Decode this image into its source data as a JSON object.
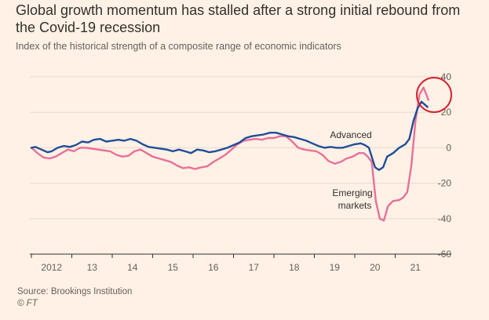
{
  "header": {
    "title": "Global growth momentum has stalled after a strong initial rebound from the Covid-19 recession",
    "subtitle": "Index of the historical strength of a composite range of economic indicators"
  },
  "footer": {
    "source": "Source: Brookings Institution",
    "credit": "© FT"
  },
  "colors": {
    "background": "#fff1e5",
    "advanced": "#1f4e99",
    "emerging": "#e8709a",
    "highlight_circle": "#d81e2b",
    "gridline": "#e6d9ce",
    "axis": "#33302e"
  },
  "chart_data": {
    "type": "line",
    "title": "Global growth momentum has stalled after a strong initial rebound from the Covid-19 recession",
    "subtitle": "Index of the historical strength of a composite range of economic indicators",
    "ylim": [
      -60,
      40
    ],
    "xlim": [
      2011.5,
      2021.5
    ],
    "y_ticks": [
      40,
      20,
      0,
      -20,
      -40,
      -60
    ],
    "y_tick_labels": [
      "40",
      "20",
      "0",
      "-20",
      "-40",
      "-60"
    ],
    "x_tick_labels": [
      {
        "x": 2012,
        "label": "2012"
      },
      {
        "x": 2013,
        "label": "13"
      },
      {
        "x": 2014,
        "label": "14"
      },
      {
        "x": 2015,
        "label": "15"
      },
      {
        "x": 2016,
        "label": "16"
      },
      {
        "x": 2017,
        "label": "17"
      },
      {
        "x": 2018,
        "label": "18"
      },
      {
        "x": 2019,
        "label": "19"
      },
      {
        "x": 2020,
        "label": "20"
      },
      {
        "x": 2021,
        "label": "21"
      }
    ],
    "grid": true,
    "legend": "direct labels",
    "annotation": "red circle around 2021 peak",
    "series": [
      {
        "name": "Advanced",
        "color": "#1f4e99",
        "x": [
          2011.5,
          2011.6,
          2011.75,
          2011.9,
          2012.0,
          2012.15,
          2012.3,
          2012.45,
          2012.6,
          2012.75,
          2012.9,
          2013.05,
          2013.2,
          2013.35,
          2013.5,
          2013.65,
          2013.8,
          2013.95,
          2014.1,
          2014.25,
          2014.4,
          2014.55,
          2014.7,
          2014.85,
          2015.0,
          2015.15,
          2015.3,
          2015.45,
          2015.6,
          2015.75,
          2015.9,
          2016.05,
          2016.2,
          2016.35,
          2016.5,
          2016.65,
          2016.8,
          2016.95,
          2017.1,
          2017.25,
          2017.4,
          2017.55,
          2017.7,
          2017.85,
          2018.0,
          2018.15,
          2018.3,
          2018.45,
          2018.6,
          2018.75,
          2018.9,
          2019.05,
          2019.2,
          2019.35,
          2019.5,
          2019.65,
          2019.75,
          2019.85,
          2020.0,
          2020.1,
          2020.2,
          2020.3,
          2020.45,
          2020.6,
          2020.75,
          2020.85,
          2020.95,
          2021.05,
          2021.15,
          2021.25,
          2021.3
        ],
        "y": [
          0,
          0.5,
          -1,
          -2.5,
          -2,
          0,
          1,
          0.5,
          1.5,
          3.5,
          3,
          4.5,
          5,
          3.5,
          4,
          4.5,
          4,
          5,
          4,
          2,
          0.5,
          0,
          -0.5,
          -1,
          -2,
          -1,
          -2,
          -3,
          -1,
          -1.5,
          -2.5,
          -2,
          -1,
          0,
          1.5,
          3,
          5.5,
          6.5,
          7,
          7.5,
          8.5,
          8.5,
          7.5,
          6.5,
          6,
          5,
          4,
          2.5,
          1,
          0,
          0.5,
          0,
          0,
          1,
          2,
          2.5,
          1.5,
          0,
          -11,
          -12.5,
          -11,
          -5,
          -3,
          0,
          2,
          5,
          15,
          22,
          26,
          24,
          23
        ]
      },
      {
        "name": "Emerging markets",
        "color": "#e8709a",
        "x": [
          2011.5,
          2011.65,
          2011.8,
          2011.95,
          2012.1,
          2012.25,
          2012.4,
          2012.55,
          2012.7,
          2012.85,
          2013.0,
          2013.15,
          2013.3,
          2013.45,
          2013.6,
          2013.75,
          2013.9,
          2014.05,
          2014.2,
          2014.35,
          2014.5,
          2014.65,
          2014.8,
          2014.95,
          2015.1,
          2015.25,
          2015.4,
          2015.55,
          2015.7,
          2015.85,
          2016.0,
          2016.15,
          2016.3,
          2016.45,
          2016.6,
          2016.75,
          2016.9,
          2017.05,
          2017.2,
          2017.35,
          2017.5,
          2017.65,
          2017.8,
          2017.95,
          2018.1,
          2018.25,
          2018.4,
          2018.55,
          2018.7,
          2018.85,
          2019.0,
          2019.15,
          2019.3,
          2019.45,
          2019.6,
          2019.72,
          2019.82,
          2019.92,
          2020.02,
          2020.12,
          2020.22,
          2020.32,
          2020.45,
          2020.6,
          2020.7,
          2020.8,
          2020.9,
          2021.0,
          2021.1,
          2021.2,
          2021.27,
          2021.32
        ],
        "y": [
          0,
          -3,
          -5.5,
          -6,
          -5,
          -3,
          -1,
          -2,
          0,
          0,
          -0.5,
          -1,
          -1.5,
          -2,
          -4,
          -5,
          -4.5,
          -2,
          -1,
          -3,
          -5,
          -6,
          -7,
          -8,
          -10,
          -11.5,
          -11,
          -12,
          -11,
          -10.5,
          -8,
          -6,
          -4,
          -1,
          2,
          4,
          4.5,
          5,
          4.5,
          5.5,
          5.5,
          6.5,
          6.5,
          3.5,
          0,
          -1,
          -1.5,
          -2,
          -4,
          -7.5,
          -9,
          -8,
          -6,
          -5,
          -3,
          -3,
          -5,
          -8,
          -30,
          -40,
          -41,
          -33,
          -30,
          -29.5,
          -28,
          -25,
          -10,
          15,
          30,
          34,
          30,
          27
        ]
      }
    ]
  },
  "labels": {
    "advanced": "Advanced",
    "emerging_line1": "Emerging",
    "emerging_line2": "markets"
  }
}
